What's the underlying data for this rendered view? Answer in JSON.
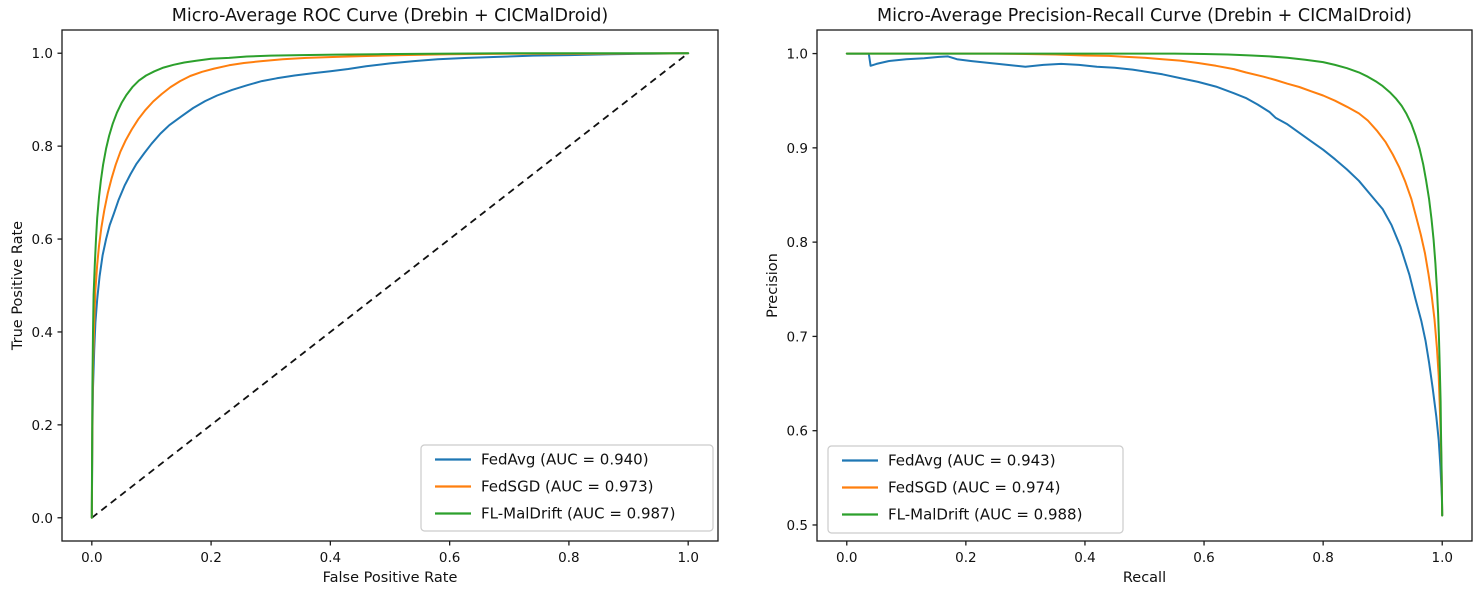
{
  "figure": {
    "background": "#ffffff",
    "text_color": "#111111",
    "spine_color": "#1a1a1a"
  },
  "chart_data": [
    {
      "type": "line",
      "title": "Micro-Average ROC Curve (Drebin + CICMalDroid)",
      "xlabel": "False Positive Rate",
      "ylabel": "True Positive Rate",
      "xlim": [
        -0.05,
        1.05
      ],
      "ylim": [
        -0.05,
        1.05
      ],
      "xticks": [
        0.0,
        0.2,
        0.4,
        0.6,
        0.8,
        1.0
      ],
      "xticklabels": [
        "0.0",
        "0.2",
        "0.4",
        "0.6",
        "0.8",
        "1.0"
      ],
      "yticks": [
        0.0,
        0.2,
        0.4,
        0.6,
        0.8,
        1.0
      ],
      "yticklabels": [
        "0.0",
        "0.2",
        "0.4",
        "0.6",
        "0.8",
        "1.0"
      ],
      "grid": false,
      "legend_position": "lower right",
      "reference_line": {
        "name": "chance-diagonal",
        "style": "dashed",
        "color": "#111111",
        "points": [
          [
            0,
            0
          ],
          [
            1,
            1
          ]
        ]
      },
      "series": [
        {
          "name": "FedAvg (AUC = 0.940)",
          "color": "#1f77b4",
          "points": [
            [
              0,
              0
            ],
            [
              0.001,
              0.18
            ],
            [
              0.002,
              0.28
            ],
            [
              0.004,
              0.36
            ],
            [
              0.006,
              0.42
            ],
            [
              0.009,
              0.47
            ],
            [
              0.013,
              0.52
            ],
            [
              0.018,
              0.565
            ],
            [
              0.024,
              0.6
            ],
            [
              0.03,
              0.63
            ],
            [
              0.037,
              0.655
            ],
            [
              0.045,
              0.685
            ],
            [
              0.055,
              0.715
            ],
            [
              0.065,
              0.74
            ],
            [
              0.075,
              0.762
            ],
            [
              0.088,
              0.785
            ],
            [
              0.1,
              0.805
            ],
            [
              0.115,
              0.827
            ],
            [
              0.13,
              0.845
            ],
            [
              0.15,
              0.864
            ],
            [
              0.17,
              0.882
            ],
            [
              0.19,
              0.897
            ],
            [
              0.21,
              0.909
            ],
            [
              0.235,
              0.921
            ],
            [
              0.26,
              0.931
            ],
            [
              0.285,
              0.94
            ],
            [
              0.31,
              0.946
            ],
            [
              0.34,
              0.952
            ],
            [
              0.37,
              0.957
            ],
            [
              0.4,
              0.961
            ],
            [
              0.43,
              0.966
            ],
            [
              0.46,
              0.972
            ],
            [
              0.5,
              0.978
            ],
            [
              0.54,
              0.983
            ],
            [
              0.58,
              0.987
            ],
            [
              0.63,
              0.99
            ],
            [
              0.68,
              0.992
            ],
            [
              0.74,
              0.995
            ],
            [
              0.8,
              0.996
            ],
            [
              0.87,
              0.998
            ],
            [
              0.94,
              0.999
            ],
            [
              1,
              1
            ]
          ]
        },
        {
          "name": "FedSGD (AUC = 0.973)",
          "color": "#ff7f0e",
          "points": [
            [
              0,
              0
            ],
            [
              0.001,
              0.22
            ],
            [
              0.002,
              0.33
            ],
            [
              0.004,
              0.42
            ],
            [
              0.006,
              0.49
            ],
            [
              0.009,
              0.545
            ],
            [
              0.012,
              0.585
            ],
            [
              0.016,
              0.625
            ],
            [
              0.021,
              0.662
            ],
            [
              0.027,
              0.7
            ],
            [
              0.033,
              0.73
            ],
            [
              0.04,
              0.76
            ],
            [
              0.048,
              0.788
            ],
            [
              0.057,
              0.813
            ],
            [
              0.067,
              0.836
            ],
            [
              0.078,
              0.858
            ],
            [
              0.09,
              0.878
            ],
            [
              0.103,
              0.896
            ],
            [
              0.117,
              0.912
            ],
            [
              0.132,
              0.927
            ],
            [
              0.148,
              0.94
            ],
            [
              0.165,
              0.951
            ],
            [
              0.185,
              0.96
            ],
            [
              0.205,
              0.967
            ],
            [
              0.23,
              0.974
            ],
            [
              0.255,
              0.979
            ],
            [
              0.285,
              0.983
            ],
            [
              0.32,
              0.987
            ],
            [
              0.36,
              0.99
            ],
            [
              0.41,
              0.992
            ],
            [
              0.46,
              0.994
            ],
            [
              0.52,
              0.996
            ],
            [
              0.6,
              0.998
            ],
            [
              0.7,
              0.999
            ],
            [
              0.82,
              0.999
            ],
            [
              1,
              1
            ]
          ]
        },
        {
          "name": "FL-MalDrift (AUC = 0.987)",
          "color": "#2ca02c",
          "points": [
            [
              0,
              0
            ],
            [
              0.001,
              0.28
            ],
            [
              0.002,
              0.4
            ],
            [
              0.003,
              0.48
            ],
            [
              0.005,
              0.545
            ],
            [
              0.007,
              0.6
            ],
            [
              0.009,
              0.645
            ],
            [
              0.012,
              0.69
            ],
            [
              0.015,
              0.725
            ],
            [
              0.019,
              0.76
            ],
            [
              0.024,
              0.795
            ],
            [
              0.029,
              0.822
            ],
            [
              0.035,
              0.848
            ],
            [
              0.042,
              0.872
            ],
            [
              0.05,
              0.893
            ],
            [
              0.058,
              0.91
            ],
            [
              0.068,
              0.927
            ],
            [
              0.079,
              0.941
            ],
            [
              0.091,
              0.952
            ],
            [
              0.105,
              0.961
            ],
            [
              0.12,
              0.969
            ],
            [
              0.137,
              0.975
            ],
            [
              0.155,
              0.98
            ],
            [
              0.175,
              0.984
            ],
            [
              0.2,
              0.988
            ],
            [
              0.23,
              0.99
            ],
            [
              0.26,
              0.993
            ],
            [
              0.3,
              0.995
            ],
            [
              0.35,
              0.996
            ],
            [
              0.41,
              0.997
            ],
            [
              0.48,
              0.998
            ],
            [
              0.57,
              0.999
            ],
            [
              0.7,
              1
            ],
            [
              1,
              1
            ]
          ]
        }
      ]
    },
    {
      "type": "line",
      "title": "Micro-Average Precision-Recall Curve (Drebin + CICMalDroid)",
      "xlabel": "Recall",
      "ylabel": "Precision",
      "xlim": [
        -0.05,
        1.05
      ],
      "ylim": [
        0.483,
        1.025
      ],
      "xticks": [
        0.0,
        0.2,
        0.4,
        0.6,
        0.8,
        1.0
      ],
      "xticklabels": [
        "0.0",
        "0.2",
        "0.4",
        "0.6",
        "0.8",
        "1.0"
      ],
      "yticks": [
        0.5,
        0.6,
        0.7,
        0.8,
        0.9,
        1.0
      ],
      "yticklabels": [
        "0.5",
        "0.6",
        "0.7",
        "0.8",
        "0.9",
        "1.0"
      ],
      "grid": false,
      "legend_position": "lower left",
      "series": [
        {
          "name": "FedAvg (AUC = 0.943)",
          "color": "#1f77b4",
          "points": [
            [
              0,
              1
            ],
            [
              0.037,
              1
            ],
            [
              0.04,
              0.987
            ],
            [
              0.05,
              0.989
            ],
            [
              0.07,
              0.992
            ],
            [
              0.1,
              0.994
            ],
            [
              0.13,
              0.995
            ],
            [
              0.155,
              0.9965
            ],
            [
              0.17,
              0.997
            ],
            [
              0.185,
              0.994
            ],
            [
              0.21,
              0.992
            ],
            [
              0.24,
              0.99
            ],
            [
              0.27,
              0.988
            ],
            [
              0.3,
              0.986
            ],
            [
              0.33,
              0.988
            ],
            [
              0.36,
              0.989
            ],
            [
              0.39,
              0.988
            ],
            [
              0.42,
              0.986
            ],
            [
              0.45,
              0.985
            ],
            [
              0.48,
              0.983
            ],
            [
              0.5,
              0.981
            ],
            [
              0.53,
              0.978
            ],
            [
              0.56,
              0.974
            ],
            [
              0.59,
              0.97
            ],
            [
              0.62,
              0.965
            ],
            [
              0.65,
              0.958
            ],
            [
              0.67,
              0.953
            ],
            [
              0.69,
              0.946
            ],
            [
              0.71,
              0.938
            ],
            [
              0.72,
              0.932
            ],
            [
              0.74,
              0.925
            ],
            [
              0.76,
              0.916
            ],
            [
              0.78,
              0.907
            ],
            [
              0.8,
              0.898
            ],
            [
              0.82,
              0.888
            ],
            [
              0.84,
              0.877
            ],
            [
              0.86,
              0.865
            ],
            [
              0.88,
              0.85
            ],
            [
              0.9,
              0.835
            ],
            [
              0.915,
              0.818
            ],
            [
              0.93,
              0.795
            ],
            [
              0.945,
              0.765
            ],
            [
              0.955,
              0.74
            ],
            [
              0.965,
              0.716
            ],
            [
              0.972,
              0.695
            ],
            [
              0.978,
              0.672
            ],
            [
              0.984,
              0.645
            ],
            [
              0.99,
              0.615
            ],
            [
              0.994,
              0.59
            ],
            [
              0.997,
              0.562
            ],
            [
              0.9995,
              0.53
            ],
            [
              1,
              0.51
            ]
          ]
        },
        {
          "name": "FedSGD (AUC = 0.974)",
          "color": "#ff7f0e",
          "points": [
            [
              0,
              1
            ],
            [
              0.25,
              1
            ],
            [
              0.3,
              0.9995
            ],
            [
              0.35,
              0.999
            ],
            [
              0.4,
              0.998
            ],
            [
              0.44,
              0.9975
            ],
            [
              0.47,
              0.9965
            ],
            [
              0.5,
              0.9955
            ],
            [
              0.53,
              0.994
            ],
            [
              0.56,
              0.9925
            ],
            [
              0.59,
              0.99
            ],
            [
              0.62,
              0.987
            ],
            [
              0.65,
              0.9835
            ],
            [
              0.67,
              0.98
            ],
            [
              0.7,
              0.9755
            ],
            [
              0.72,
              0.972
            ],
            [
              0.74,
              0.968
            ],
            [
              0.76,
              0.9645
            ],
            [
              0.78,
              0.96
            ],
            [
              0.8,
              0.9555
            ],
            [
              0.82,
              0.95
            ],
            [
              0.84,
              0.9435
            ],
            [
              0.86,
              0.9365
            ],
            [
              0.875,
              0.929
            ],
            [
              0.89,
              0.9185
            ],
            [
              0.905,
              0.906
            ],
            [
              0.917,
              0.893
            ],
            [
              0.928,
              0.879
            ],
            [
              0.938,
              0.864
            ],
            [
              0.948,
              0.846
            ],
            [
              0.956,
              0.8275
            ],
            [
              0.964,
              0.808
            ],
            [
              0.971,
              0.788
            ],
            [
              0.977,
              0.766
            ],
            [
              0.982,
              0.745
            ],
            [
              0.987,
              0.718
            ],
            [
              0.991,
              0.688
            ],
            [
              0.994,
              0.658
            ],
            [
              0.996,
              0.625
            ],
            [
              0.998,
              0.585
            ],
            [
              0.9992,
              0.545
            ],
            [
              1,
              0.51
            ]
          ]
        },
        {
          "name": "FL-MalDrift (AUC = 0.988)",
          "color": "#2ca02c",
          "points": [
            [
              0,
              1
            ],
            [
              0.55,
              1
            ],
            [
              0.6,
              0.9995
            ],
            [
              0.64,
              0.999
            ],
            [
              0.68,
              0.998
            ],
            [
              0.71,
              0.997
            ],
            [
              0.74,
              0.9955
            ],
            [
              0.77,
              0.9935
            ],
            [
              0.8,
              0.991
            ],
            [
              0.82,
              0.988
            ],
            [
              0.84,
              0.9845
            ],
            [
              0.86,
              0.98
            ],
            [
              0.875,
              0.9755
            ],
            [
              0.89,
              0.97
            ],
            [
              0.9,
              0.9655
            ],
            [
              0.912,
              0.959
            ],
            [
              0.922,
              0.9525
            ],
            [
              0.932,
              0.9445
            ],
            [
              0.94,
              0.936
            ],
            [
              0.948,
              0.9255
            ],
            [
              0.955,
              0.9135
            ],
            [
              0.962,
              0.899
            ],
            [
              0.968,
              0.8825
            ],
            [
              0.973,
              0.8655
            ],
            [
              0.978,
              0.8455
            ],
            [
              0.982,
              0.8245
            ],
            [
              0.9855,
              0.8025
            ],
            [
              0.9885,
              0.7775
            ],
            [
              0.991,
              0.7515
            ],
            [
              0.993,
              0.7245
            ],
            [
              0.9945,
              0.697
            ],
            [
              0.996,
              0.6655
            ],
            [
              0.9972,
              0.6315
            ],
            [
              0.998,
              0.5975
            ],
            [
              0.999,
              0.558
            ],
            [
              1,
              0.51
            ]
          ]
        }
      ]
    }
  ]
}
